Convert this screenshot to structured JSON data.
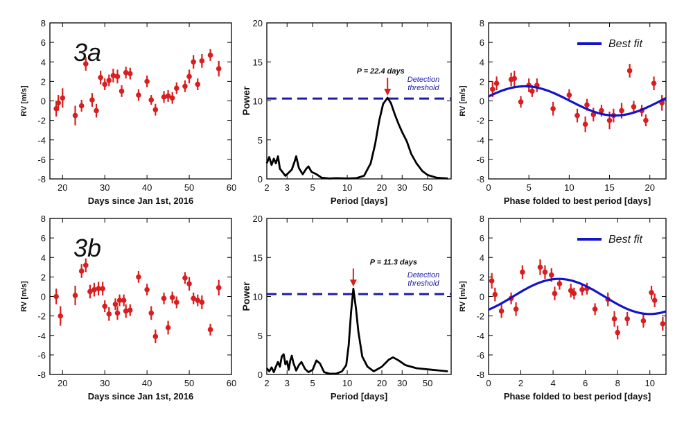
{
  "colors": {
    "points": "#d81e1e",
    "fit": "#1313c8",
    "threshold": "#1c1ca8",
    "curve": "#000000"
  },
  "panels": [
    {
      "id": "a1",
      "tag": "3a",
      "kind": "rv-time",
      "xlabel": "Days since Jan 1st, 2016",
      "ylabel": "RV [m/s]",
      "xlim": [
        17,
        60
      ],
      "ylim": [
        -8,
        8
      ],
      "xticks": [
        20,
        30,
        40,
        50,
        60
      ],
      "yticks": [
        -8,
        -6,
        -4,
        -2,
        0,
        2,
        4,
        6,
        8
      ],
      "points": [
        {
          "x": 18.5,
          "y": -0.8,
          "e": 0.8
        },
        {
          "x": 19,
          "y": -0.2,
          "e": 0.8
        },
        {
          "x": 20,
          "y": 0.3,
          "e": 1.0
        },
        {
          "x": 23,
          "y": -1.5,
          "e": 1.0
        },
        {
          "x": 24.5,
          "y": -0.5,
          "e": 0.6
        },
        {
          "x": 25.5,
          "y": 3.8,
          "e": 0.7
        },
        {
          "x": 27,
          "y": 0.1,
          "e": 0.7
        },
        {
          "x": 28,
          "y": -1.0,
          "e": 0.7
        },
        {
          "x": 29,
          "y": 2.4,
          "e": 0.7
        },
        {
          "x": 30,
          "y": 1.7,
          "e": 0.6
        },
        {
          "x": 31,
          "y": 2.1,
          "e": 0.6
        },
        {
          "x": 32,
          "y": 2.6,
          "e": 0.7
        },
        {
          "x": 33,
          "y": 2.5,
          "e": 0.7
        },
        {
          "x": 34,
          "y": 1.0,
          "e": 0.6
        },
        {
          "x": 35,
          "y": 2.9,
          "e": 0.6
        },
        {
          "x": 36,
          "y": 2.8,
          "e": 0.6
        },
        {
          "x": 38,
          "y": 0.6,
          "e": 0.6
        },
        {
          "x": 40,
          "y": 2.0,
          "e": 0.6
        },
        {
          "x": 41,
          "y": 0.1,
          "e": 0.5
        },
        {
          "x": 42,
          "y": -0.9,
          "e": 0.6
        },
        {
          "x": 44,
          "y": 0.4,
          "e": 0.6
        },
        {
          "x": 45,
          "y": 0.5,
          "e": 0.6
        },
        {
          "x": 46,
          "y": 0.3,
          "e": 0.6
        },
        {
          "x": 47,
          "y": 1.3,
          "e": 0.6
        },
        {
          "x": 49,
          "y": 1.5,
          "e": 0.6
        },
        {
          "x": 50,
          "y": 2.5,
          "e": 0.7
        },
        {
          "x": 51,
          "y": 4.0,
          "e": 0.7
        },
        {
          "x": 52,
          "y": 1.7,
          "e": 0.6
        },
        {
          "x": 53,
          "y": 4.1,
          "e": 0.7
        },
        {
          "x": 55,
          "y": 4.7,
          "e": 0.6
        },
        {
          "x": 57,
          "y": 3.3,
          "e": 0.8
        }
      ]
    },
    {
      "id": "a2",
      "kind": "periodogram",
      "xlabel": "Period [days]",
      "ylabel": "Power",
      "xlim": [
        2,
        80
      ],
      "ylim": [
        0,
        20
      ],
      "xscale": "log",
      "xticks": [
        2,
        3,
        5,
        10,
        20,
        30,
        50
      ],
      "yticks": [
        0,
        5,
        10,
        15,
        20
      ],
      "threshold": 10.3,
      "threshold_label": [
        "Detection",
        "threshold"
      ],
      "peak_period": 22.4,
      "peak_label": "P = 22.4 days",
      "curve": [
        [
          2,
          2.0
        ],
        [
          2.1,
          2.8
        ],
        [
          2.2,
          1.8
        ],
        [
          2.3,
          2.6
        ],
        [
          2.4,
          2.0
        ],
        [
          2.5,
          2.9
        ],
        [
          2.6,
          1.3
        ],
        [
          2.7,
          1.0
        ],
        [
          2.9,
          0.4
        ],
        [
          3.1,
          0.8
        ],
        [
          3.3,
          1.2
        ],
        [
          3.5,
          2.3
        ],
        [
          3.6,
          2.9
        ],
        [
          3.8,
          1.4
        ],
        [
          4.1,
          0.6
        ],
        [
          4.4,
          1.3
        ],
        [
          4.6,
          1.6
        ],
        [
          4.9,
          0.9
        ],
        [
          5.4,
          0.6
        ],
        [
          6,
          0.15
        ],
        [
          7,
          0.05
        ],
        [
          8,
          0.1
        ],
        [
          10,
          0.05
        ],
        [
          12,
          0.1
        ],
        [
          14,
          0.4
        ],
        [
          16,
          2.0
        ],
        [
          17.5,
          4.5
        ],
        [
          19,
          7.5
        ],
        [
          20.5,
          9.6
        ],
        [
          22.4,
          10.4
        ],
        [
          24,
          9.7
        ],
        [
          26,
          8.2
        ],
        [
          28,
          7.0
        ],
        [
          30,
          6.0
        ],
        [
          33,
          4.8
        ],
        [
          36,
          3.2
        ],
        [
          40,
          2.0
        ],
        [
          45,
          1.0
        ],
        [
          50,
          0.5
        ],
        [
          60,
          0.15
        ],
        [
          75,
          0.05
        ]
      ]
    },
    {
      "id": "a3",
      "kind": "phase",
      "xlabel": "Phase folded to best period [days]",
      "ylabel": "RV [m/s]",
      "legend": "Best fit",
      "xlim": [
        0,
        22
      ],
      "ylim": [
        -8,
        8
      ],
      "xticks": [
        0,
        5,
        10,
        15,
        20
      ],
      "yticks": [
        -8,
        -6,
        -4,
        -2,
        0,
        2,
        4,
        6,
        8
      ],
      "fit": {
        "amp": 1.5,
        "period": 22.4,
        "peak_at": 4.5,
        "offset": 0.0
      },
      "points": [
        {
          "x": 0.5,
          "y": 1.2,
          "e": 0.8
        },
        {
          "x": 1,
          "y": 1.8,
          "e": 0.7
        },
        {
          "x": 2.8,
          "y": 2.2,
          "e": 0.7
        },
        {
          "x": 3.2,
          "y": 2.3,
          "e": 0.8
        },
        {
          "x": 4,
          "y": -0.1,
          "e": 0.6
        },
        {
          "x": 5,
          "y": 1.6,
          "e": 0.7
        },
        {
          "x": 5.4,
          "y": 1.0,
          "e": 0.6
        },
        {
          "x": 6,
          "y": 1.6,
          "e": 0.7
        },
        {
          "x": 8,
          "y": -0.8,
          "e": 0.7
        },
        {
          "x": 10,
          "y": 0.6,
          "e": 0.6
        },
        {
          "x": 11,
          "y": -1.5,
          "e": 0.7
        },
        {
          "x": 12,
          "y": -2.4,
          "e": 0.8
        },
        {
          "x": 12.2,
          "y": -0.4,
          "e": 0.6
        },
        {
          "x": 13,
          "y": -1.4,
          "e": 0.7
        },
        {
          "x": 14,
          "y": -1.0,
          "e": 0.6
        },
        {
          "x": 15,
          "y": -2.0,
          "e": 0.9
        },
        {
          "x": 15.5,
          "y": -1.5,
          "e": 0.7
        },
        {
          "x": 16.5,
          "y": -1.0,
          "e": 0.8
        },
        {
          "x": 17.5,
          "y": 3.1,
          "e": 0.7
        },
        {
          "x": 18,
          "y": -0.6,
          "e": 0.6
        },
        {
          "x": 19,
          "y": -1.0,
          "e": 0.6
        },
        {
          "x": 19.5,
          "y": -2.0,
          "e": 0.6
        },
        {
          "x": 20.5,
          "y": 1.8,
          "e": 0.7
        },
        {
          "x": 21.5,
          "y": -0.2,
          "e": 0.8
        }
      ]
    },
    {
      "id": "b1",
      "tag": "3b",
      "kind": "rv-time",
      "xlabel": "Days since Jan 1st, 2016",
      "ylabel": "RV [m/s]",
      "xlim": [
        17,
        60
      ],
      "ylim": [
        -8,
        8
      ],
      "xticks": [
        20,
        30,
        40,
        50,
        60
      ],
      "yticks": [
        -8,
        -6,
        -4,
        -2,
        0,
        2,
        4,
        6,
        8
      ],
      "points": [
        {
          "x": 18.5,
          "y": 0.0,
          "e": 0.8
        },
        {
          "x": 19.5,
          "y": -2.0,
          "e": 1.0
        },
        {
          "x": 23,
          "y": 0.1,
          "e": 1.0
        },
        {
          "x": 24.5,
          "y": 2.6,
          "e": 0.7
        },
        {
          "x": 25.5,
          "y": 3.2,
          "e": 0.7
        },
        {
          "x": 26.5,
          "y": 0.5,
          "e": 0.7
        },
        {
          "x": 27.5,
          "y": 0.7,
          "e": 0.7
        },
        {
          "x": 28.5,
          "y": 0.8,
          "e": 0.7
        },
        {
          "x": 29.5,
          "y": 0.8,
          "e": 0.7
        },
        {
          "x": 30,
          "y": -1.0,
          "e": 0.6
        },
        {
          "x": 31,
          "y": -1.8,
          "e": 0.7
        },
        {
          "x": 32.5,
          "y": -0.8,
          "e": 0.6
        },
        {
          "x": 33,
          "y": -1.7,
          "e": 0.7
        },
        {
          "x": 33.5,
          "y": -0.4,
          "e": 0.6
        },
        {
          "x": 34.5,
          "y": -0.4,
          "e": 0.6
        },
        {
          "x": 35,
          "y": -1.5,
          "e": 0.7
        },
        {
          "x": 36,
          "y": -1.4,
          "e": 0.6
        },
        {
          "x": 38,
          "y": 2.0,
          "e": 0.6
        },
        {
          "x": 40,
          "y": 0.7,
          "e": 0.6
        },
        {
          "x": 41,
          "y": -1.7,
          "e": 0.7
        },
        {
          "x": 42,
          "y": -4.1,
          "e": 0.7
        },
        {
          "x": 44,
          "y": -0.2,
          "e": 0.6
        },
        {
          "x": 45,
          "y": -3.2,
          "e": 0.7
        },
        {
          "x": 46,
          "y": -0.1,
          "e": 0.6
        },
        {
          "x": 47,
          "y": -0.6,
          "e": 0.6
        },
        {
          "x": 49,
          "y": 1.9,
          "e": 0.6
        },
        {
          "x": 50,
          "y": 1.3,
          "e": 0.7
        },
        {
          "x": 51,
          "y": -0.2,
          "e": 0.6
        },
        {
          "x": 52,
          "y": -0.4,
          "e": 0.6
        },
        {
          "x": 53,
          "y": -0.6,
          "e": 0.7
        },
        {
          "x": 55,
          "y": -3.4,
          "e": 0.6
        },
        {
          "x": 57,
          "y": 0.9,
          "e": 0.8
        }
      ]
    },
    {
      "id": "b2",
      "kind": "periodogram",
      "xlabel": "Period [days]",
      "ylabel": "Power",
      "xlim": [
        2,
        80
      ],
      "ylim": [
        0,
        20
      ],
      "xscale": "log",
      "xticks": [
        2,
        3,
        5,
        10,
        20,
        30,
        50
      ],
      "yticks": [
        0,
        5,
        10,
        15,
        20
      ],
      "threshold": 10.3,
      "threshold_label": [
        "Detection",
        "threshold"
      ],
      "peak_period": 11.3,
      "peak_label": "P = 11.3 days",
      "curve": [
        [
          2,
          0.8
        ],
        [
          2.1,
          0.4
        ],
        [
          2.2,
          0.9
        ],
        [
          2.3,
          0.3
        ],
        [
          2.4,
          1.0
        ],
        [
          2.5,
          1.6
        ],
        [
          2.6,
          1.0
        ],
        [
          2.7,
          2.3
        ],
        [
          2.8,
          2.6
        ],
        [
          2.9,
          1.3
        ],
        [
          3,
          1.7
        ],
        [
          3.1,
          0.6
        ],
        [
          3.2,
          1.8
        ],
        [
          3.3,
          2.4
        ],
        [
          3.4,
          1.5
        ],
        [
          3.6,
          0.5
        ],
        [
          3.8,
          1.2
        ],
        [
          4,
          1.6
        ],
        [
          4.3,
          0.7
        ],
        [
          4.6,
          0.3
        ],
        [
          5,
          0.6
        ],
        [
          5.4,
          1.8
        ],
        [
          5.8,
          1.4
        ],
        [
          6.3,
          0.3
        ],
        [
          7,
          0.1
        ],
        [
          8,
          0.1
        ],
        [
          9,
          0.4
        ],
        [
          9.8,
          1.2
        ],
        [
          10.3,
          3.8
        ],
        [
          10.8,
          8.0
        ],
        [
          11.3,
          11.0
        ],
        [
          11.9,
          8.5
        ],
        [
          12.5,
          5.5
        ],
        [
          13.5,
          2.3
        ],
        [
          15,
          1.0
        ],
        [
          17,
          0.4
        ],
        [
          20,
          1.0
        ],
        [
          23,
          1.9
        ],
        [
          25,
          2.2
        ],
        [
          28,
          1.8
        ],
        [
          32,
          1.2
        ],
        [
          40,
          0.8
        ],
        [
          55,
          0.6
        ],
        [
          75,
          0.4
        ]
      ]
    },
    {
      "id": "b3",
      "kind": "phase",
      "xlabel": "Phase folded to best period [days]",
      "ylabel": "RV [m/s]",
      "legend": "Best fit",
      "xlim": [
        0,
        11
      ],
      "ylim": [
        -8,
        8
      ],
      "xticks": [
        0,
        2,
        4,
        6,
        8,
        10
      ],
      "yticks": [
        -8,
        -6,
        -4,
        -2,
        0,
        2,
        4,
        6,
        8
      ],
      "fit": {
        "amp": 1.8,
        "period": 11.3,
        "peak_at": 4.35,
        "offset": 0.0
      },
      "points": [
        {
          "x": 0.2,
          "y": 1.6,
          "e": 0.8
        },
        {
          "x": 0.4,
          "y": 0.2,
          "e": 0.7
        },
        {
          "x": 0.8,
          "y": -1.5,
          "e": 0.7
        },
        {
          "x": 1.4,
          "y": -0.2,
          "e": 0.6
        },
        {
          "x": 1.7,
          "y": -1.3,
          "e": 0.7
        },
        {
          "x": 2.1,
          "y": 2.5,
          "e": 0.7
        },
        {
          "x": 3.2,
          "y": 3.0,
          "e": 0.8
        },
        {
          "x": 3.5,
          "y": 2.5,
          "e": 0.7
        },
        {
          "x": 3.9,
          "y": 2.2,
          "e": 0.7
        },
        {
          "x": 4.1,
          "y": 0.3,
          "e": 0.7
        },
        {
          "x": 4.4,
          "y": 1.3,
          "e": 0.6
        },
        {
          "x": 5.1,
          "y": 0.6,
          "e": 0.7
        },
        {
          "x": 5.3,
          "y": 0.3,
          "e": 0.6
        },
        {
          "x": 5.8,
          "y": 0.7,
          "e": 0.6
        },
        {
          "x": 6.1,
          "y": 0.8,
          "e": 0.6
        },
        {
          "x": 6.6,
          "y": -1.3,
          "e": 0.6
        },
        {
          "x": 7.4,
          "y": -0.3,
          "e": 0.7
        },
        {
          "x": 7.8,
          "y": -2.3,
          "e": 0.8
        },
        {
          "x": 8,
          "y": -3.7,
          "e": 0.7
        },
        {
          "x": 8.6,
          "y": -2.3,
          "e": 0.7
        },
        {
          "x": 9.6,
          "y": -2.5,
          "e": 0.7
        },
        {
          "x": 10.1,
          "y": 0.4,
          "e": 0.7
        },
        {
          "x": 10.3,
          "y": -0.4,
          "e": 0.7
        },
        {
          "x": 10.8,
          "y": -2.8,
          "e": 0.7
        }
      ]
    }
  ]
}
